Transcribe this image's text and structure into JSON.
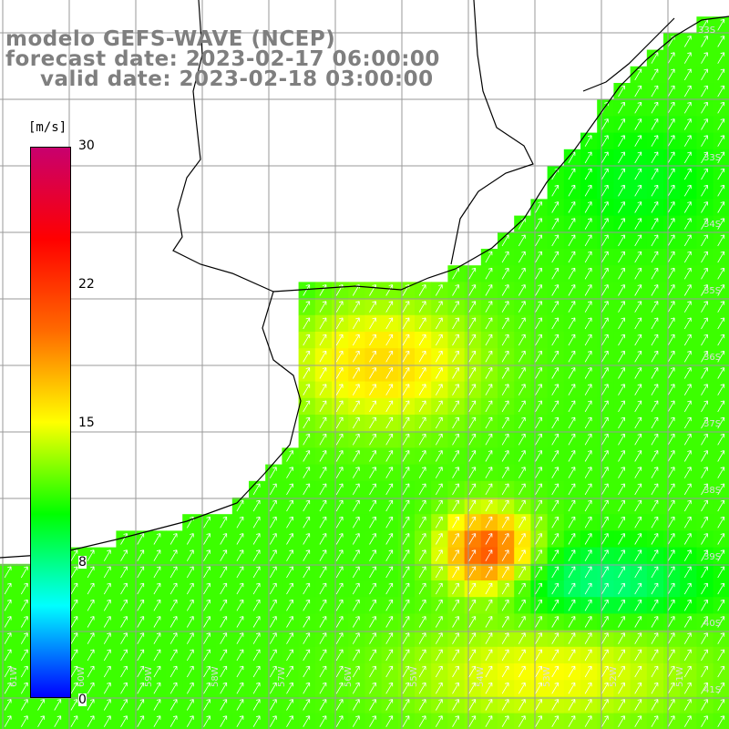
{
  "title": {
    "line1": "modelo GEFS-WAVE (NCEP)",
    "line2": "forecast date: 2023-02-17 06:00:00",
    "line3": "valid date: 2023-02-18 03:00:00"
  },
  "colorbar": {
    "unit": "[m/s]",
    "ticks": [
      "30",
      "22",
      "15",
      "8",
      "0"
    ],
    "colors": [
      "#c8006e",
      "#ff0000",
      "#ff6a00",
      "#ffff00",
      "#00ff00",
      "#00ffff",
      "#0000ff"
    ]
  },
  "map": {
    "land_color": "#ffffff",
    "coast_color": "#000000",
    "grid_color": "#9a9a9a",
    "lon_labels": [
      "61W",
      "60W",
      "59W",
      "58W",
      "57W",
      "56W",
      "55W",
      "54W",
      "53W",
      "52W",
      "51W"
    ],
    "lat_labels": [
      "33S",
      "34S",
      "35S",
      "36S",
      "37S",
      "38S",
      "39S",
      "40S",
      "41S"
    ]
  }
}
